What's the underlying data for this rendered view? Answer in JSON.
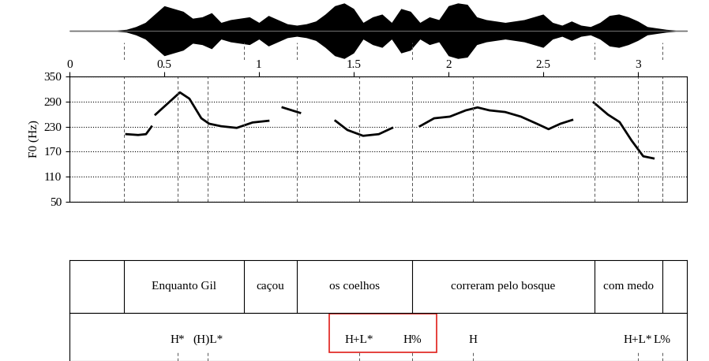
{
  "chart_data": {
    "type": "line",
    "ylabel": "F0 (Hz)",
    "xlim": [
      0,
      3.26
    ],
    "xticks": [
      0,
      0.5,
      1,
      1.5,
      2,
      2.5,
      3
    ],
    "ylim": [
      50,
      350
    ],
    "yticks": [
      50,
      110,
      170,
      230,
      290,
      350
    ],
    "grid": true,
    "color": "#000000",
    "x": [
      0.3,
      0.3625,
      0.404,
      0.433,
      0.44,
      0.454,
      0.583,
      0.633,
      0.696,
      0.7375,
      0.8,
      0.883,
      0.967,
      1.05,
      1.09,
      1.125,
      1.217,
      1.3,
      1.404,
      1.467,
      1.55,
      1.633,
      1.704,
      1.78,
      1.85,
      1.925,
      2.008,
      2.092,
      2.154,
      2.217,
      2.3,
      2.383,
      2.467,
      2.529,
      2.592,
      2.654,
      2.7,
      2.767,
      2.842,
      2.904,
      2.967,
      3.029,
      3.083
    ],
    "values": [
      212,
      210,
      212,
      230,
      null,
      259,
      312,
      297,
      250,
      237,
      231,
      227,
      240,
      244,
      null,
      276,
      263,
      null,
      244,
      222,
      208,
      212,
      227,
      null,
      231,
      250,
      254,
      269,
      276,
      269,
      265,
      254,
      237,
      224,
      237,
      246,
      null,
      288,
      259,
      241,
      197,
      159,
      154
    ],
    "waveform": {
      "time": [
        0,
        0.25,
        0.3,
        0.35,
        0.4,
        0.45,
        0.5,
        0.55,
        0.6,
        0.65,
        0.7,
        0.75,
        0.8,
        0.85,
        0.9,
        0.95,
        1.0,
        1.05,
        1.1,
        1.15,
        1.2,
        1.25,
        1.3,
        1.35,
        1.4,
        1.45,
        1.5,
        1.55,
        1.6,
        1.65,
        1.7,
        1.75,
        1.8,
        1.85,
        1.9,
        1.95,
        2.0,
        2.05,
        2.1,
        2.15,
        2.2,
        2.25,
        2.3,
        2.35,
        2.4,
        2.45,
        2.5,
        2.55,
        2.6,
        2.65,
        2.7,
        2.75,
        2.8,
        2.85,
        2.9,
        2.95,
        3.0,
        3.05,
        3.1,
        3.15,
        3.2,
        3.26
      ],
      "amplitude": [
        0.02,
        0.02,
        0.05,
        0.15,
        0.3,
        0.6,
        0.9,
        0.8,
        0.7,
        0.45,
        0.5,
        0.65,
        0.3,
        0.4,
        0.45,
        0.5,
        0.3,
        0.55,
        0.4,
        0.25,
        0.2,
        0.25,
        0.35,
        0.6,
        0.9,
        1.0,
        0.8,
        0.3,
        0.5,
        0.6,
        0.3,
        0.8,
        0.7,
        0.3,
        0.5,
        0.4,
        0.9,
        1.0,
        0.95,
        0.5,
        0.4,
        0.35,
        0.3,
        0.35,
        0.4,
        0.5,
        0.6,
        0.3,
        0.2,
        0.35,
        0.2,
        0.15,
        0.3,
        0.55,
        0.6,
        0.5,
        0.35,
        0.15,
        0.1,
        0.05,
        0.02,
        0.02
      ]
    },
    "words": [
      {
        "text": "Enquanto Gil",
        "start": 0.2875,
        "end": 0.92
      },
      {
        "text": "caçou",
        "start": 0.92,
        "end": 1.2
      },
      {
        "text": "os coelhos",
        "start": 1.2,
        "end": 1.81
      },
      {
        "text": "correram pelo bosque",
        "start": 1.81,
        "end": 2.77
      },
      {
        "text": "com medo",
        "start": 2.77,
        "end": 3.13
      }
    ],
    "tones": [
      {
        "label": "H*",
        "time": 0.57
      },
      {
        "label": "(H)L*",
        "time": 0.73
      },
      {
        "label": "H+L*",
        "time": 1.53
      },
      {
        "label": "H%",
        "time": 1.81
      },
      {
        "label": "H",
        "time": 2.13
      },
      {
        "label": "H+L*",
        "time": 3.0
      },
      {
        "label": "L%",
        "time": 3.13
      }
    ]
  }
}
